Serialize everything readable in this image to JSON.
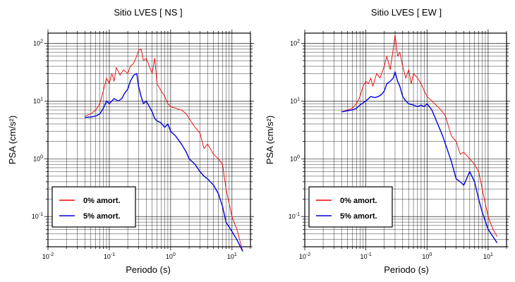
{
  "figure": {
    "legend_labels": [
      "0% amort.",
      "5% amort."
    ],
    "colors": {
      "undamped": "#ee0000",
      "damped": "#0000dd"
    }
  },
  "chart_data": [
    {
      "type": "line",
      "title": "Sitio LVES [ NS ]",
      "xlabel": "Periodo (s)",
      "ylabel": "PSA (cm/s²)",
      "xscale": "log",
      "yscale": "log",
      "xlim": [
        0.01,
        20
      ],
      "ylim": [
        0.03,
        150
      ],
      "xticks": [
        "10-2",
        "10-1",
        "100",
        "101"
      ],
      "yticks": [
        "10-1",
        "100",
        "101",
        "102"
      ],
      "grid": true,
      "legend_position": "bottom-left",
      "series": [
        {
          "name": "0% amort.",
          "color": "#ee0000",
          "x": [
            0.04,
            0.05,
            0.06,
            0.07,
            0.08,
            0.09,
            0.1,
            0.11,
            0.12,
            0.13,
            0.15,
            0.17,
            0.2,
            0.22,
            0.25,
            0.28,
            0.3,
            0.33,
            0.36,
            0.4,
            0.45,
            0.5,
            0.55,
            0.6,
            0.7,
            0.8,
            0.9,
            1.0,
            1.2,
            1.5,
            1.8,
            2.0,
            2.5,
            3.0,
            3.5,
            4.0,
            5.0,
            6.0,
            7.0,
            8.0,
            10.0,
            12.0,
            15.0
          ],
          "y": [
            5.5,
            6.0,
            7.0,
            9.0,
            15.0,
            25.0,
            20.0,
            30.0,
            22.0,
            38.0,
            28.0,
            35.0,
            30.0,
            40.0,
            45.0,
            60.0,
            75.0,
            80.0,
            50.0,
            55.0,
            40.0,
            30.0,
            55.0,
            20.0,
            15.0,
            12.0,
            9.0,
            8.0,
            7.5,
            7.0,
            6.0,
            5.0,
            3.5,
            2.8,
            1.5,
            1.8,
            1.2,
            1.0,
            0.8,
            0.3,
            0.1,
            0.06,
            0.025
          ]
        },
        {
          "name": "5% amort.",
          "color": "#0000dd",
          "x": [
            0.04,
            0.05,
            0.06,
            0.07,
            0.08,
            0.09,
            0.1,
            0.12,
            0.14,
            0.16,
            0.18,
            0.2,
            0.22,
            0.25,
            0.28,
            0.3,
            0.33,
            0.36,
            0.4,
            0.45,
            0.5,
            0.55,
            0.6,
            0.7,
            0.8,
            0.9,
            1.0,
            1.2,
            1.5,
            1.8,
            2.0,
            2.5,
            3.0,
            3.5,
            4.0,
            5.0,
            6.0,
            7.0,
            8.0,
            10.0,
            12.0,
            15.0
          ],
          "y": [
            5.2,
            5.3,
            5.5,
            6.0,
            7.5,
            10.0,
            9.0,
            11.0,
            10.0,
            11.0,
            14.0,
            16.0,
            22.0,
            28.0,
            30.0,
            18.0,
            12.0,
            9.0,
            10.0,
            8.0,
            6.5,
            5.0,
            4.5,
            4.2,
            3.5,
            4.0,
            3.0,
            2.5,
            1.8,
            1.3,
            1.0,
            0.8,
            0.6,
            0.5,
            0.45,
            0.35,
            0.25,
            0.15,
            0.08,
            0.055,
            0.04,
            0.025
          ]
        }
      ]
    },
    {
      "type": "line",
      "title": "Sitio LVES [ EW ]",
      "xlabel": "Periodo (s)",
      "ylabel": "PSA (cm/s²)",
      "xscale": "log",
      "yscale": "log",
      "xlim": [
        0.01,
        20
      ],
      "ylim": [
        0.03,
        150
      ],
      "xticks": [
        "10-2",
        "10-1",
        "100",
        "101"
      ],
      "yticks": [
        "10-1",
        "100",
        "101",
        "102"
      ],
      "grid": true,
      "legend_position": "bottom-left",
      "series": [
        {
          "name": "0% amort.",
          "color": "#ee0000",
          "x": [
            0.04,
            0.05,
            0.06,
            0.07,
            0.08,
            0.09,
            0.1,
            0.11,
            0.12,
            0.13,
            0.15,
            0.17,
            0.2,
            0.22,
            0.25,
            0.28,
            0.3,
            0.33,
            0.36,
            0.4,
            0.45,
            0.5,
            0.55,
            0.6,
            0.7,
            0.8,
            0.9,
            1.0,
            1.2,
            1.5,
            1.8,
            2.0,
            2.5,
            3.0,
            3.5,
            4.0,
            5.0,
            6.0,
            7.0,
            8.0,
            10.0,
            12.0,
            14.0
          ],
          "y": [
            6.5,
            7.0,
            7.5,
            9.0,
            12.0,
            18.0,
            22.0,
            20.0,
            25.0,
            18.0,
            30.0,
            25.0,
            40.0,
            60.0,
            35.0,
            80.0,
            140.0,
            60.0,
            70.0,
            40.0,
            25.0,
            35.0,
            20.0,
            30.0,
            25.0,
            20.0,
            15.0,
            12.0,
            10.0,
            8.0,
            6.5,
            5.5,
            2.5,
            2.0,
            1.2,
            1.3,
            1.0,
            0.8,
            0.6,
            0.3,
            0.1,
            0.06,
            0.045
          ]
        },
        {
          "name": "5% amort.",
          "color": "#0000dd",
          "x": [
            0.04,
            0.05,
            0.06,
            0.07,
            0.08,
            0.1,
            0.12,
            0.14,
            0.16,
            0.18,
            0.2,
            0.22,
            0.25,
            0.28,
            0.3,
            0.33,
            0.36,
            0.4,
            0.45,
            0.5,
            0.6,
            0.7,
            0.8,
            0.9,
            1.0,
            1.2,
            1.5,
            1.8,
            2.0,
            2.5,
            3.0,
            3.5,
            4.0,
            5.0,
            6.0,
            7.0,
            8.0,
            10.0,
            12.0,
            14.0
          ],
          "y": [
            6.5,
            6.8,
            7.0,
            7.5,
            8.5,
            10.0,
            12.0,
            11.5,
            12.0,
            13.0,
            15.0,
            20.0,
            22.0,
            25.0,
            32.0,
            22.0,
            18.0,
            12.0,
            10.0,
            9.0,
            8.5,
            8.0,
            8.5,
            8.0,
            9.0,
            7.0,
            4.0,
            2.5,
            1.8,
            0.9,
            0.45,
            0.4,
            0.35,
            0.6,
            0.4,
            0.2,
            0.12,
            0.06,
            0.045,
            0.035
          ]
        }
      ]
    }
  ]
}
